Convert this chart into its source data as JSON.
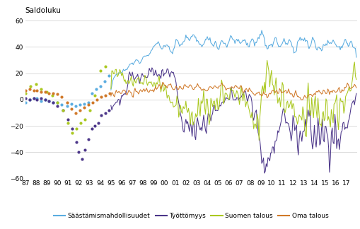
{
  "title": "Saldoluku",
  "ylim": [
    -60,
    60
  ],
  "xlim": [
    1987,
    2017.99
  ],
  "yticks": [
    -60,
    -40,
    -20,
    0,
    20,
    40,
    60
  ],
  "xtick_labels": [
    "87",
    "88",
    "89",
    "90",
    "91",
    "92",
    "93",
    "94",
    "95",
    "96",
    "97",
    "98",
    "99",
    "00",
    "01",
    "02",
    "03",
    "04",
    "05",
    "06",
    "07",
    "08",
    "09",
    "10",
    "11",
    "12",
    "13",
    "14",
    "15",
    "16",
    "17"
  ],
  "xtick_values": [
    1987,
    1988,
    1989,
    1990,
    1991,
    1992,
    1993,
    1994,
    1995,
    1996,
    1997,
    1998,
    1999,
    2000,
    2001,
    2002,
    2003,
    2004,
    2005,
    2006,
    2007,
    2008,
    2009,
    2010,
    2011,
    2012,
    2013,
    2014,
    2015,
    2016,
    2017
  ],
  "colors": {
    "saastamis": "#5aace0",
    "tyottomyys": "#4b3589",
    "suomen_talous": "#aac820",
    "oma_talous": "#d07828"
  },
  "legend_labels": [
    "Säästämismahdollisuudet",
    "Työttömyys",
    "Suomen talous",
    "Oma talous"
  ],
  "background": "#ffffff",
  "grid_color": "#cccccc"
}
